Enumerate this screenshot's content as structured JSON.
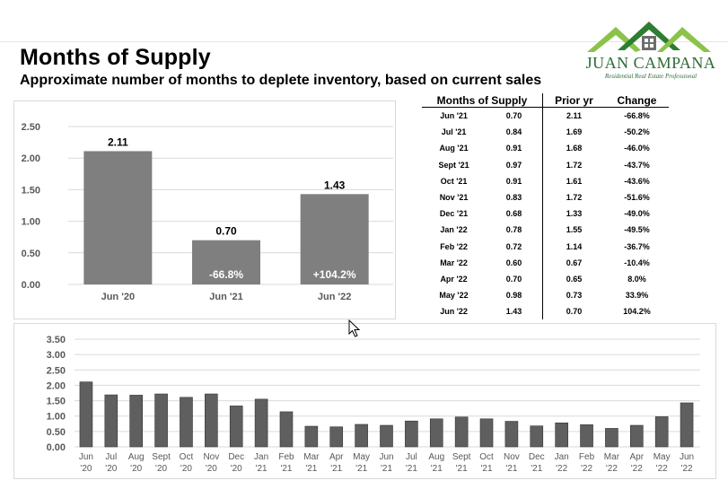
{
  "header": {
    "title": "Months of Supply",
    "subtitle": "Approximate number of months to deplete inventory, based on current sales"
  },
  "logo": {
    "name": "JUAN CAMPANA",
    "tagline": "Residential Real Estate Professional",
    "colors": {
      "green_dark": "#2e7d32",
      "green_light": "#8bc34a",
      "house": "#6d6d6d"
    }
  },
  "colors": {
    "bar": "#7f7f7f",
    "bar_dark": "#5f5f5f",
    "grid": "#d9d9d9",
    "axis_text": "#595959"
  },
  "table": {
    "headers": [
      "Months of Supply",
      "Prior yr",
      "Change"
    ],
    "rows": [
      [
        "Jun '21",
        "0.70",
        "2.11",
        "-66.8%"
      ],
      [
        "Jul '21",
        "0.84",
        "1.69",
        "-50.2%"
      ],
      [
        "Aug '21",
        "0.91",
        "1.68",
        "-46.0%"
      ],
      [
        "Sept '21",
        "0.97",
        "1.72",
        "-43.7%"
      ],
      [
        "Oct '21",
        "0.91",
        "1.61",
        "-43.6%"
      ],
      [
        "Nov '21",
        "0.83",
        "1.72",
        "-51.6%"
      ],
      [
        "Dec '21",
        "0.68",
        "1.33",
        "-49.0%"
      ],
      [
        "Jan '22",
        "0.78",
        "1.55",
        "-49.5%"
      ],
      [
        "Feb '22",
        "0.72",
        "1.14",
        "-36.7%"
      ],
      [
        "Mar '22",
        "0.60",
        "0.67",
        "-10.4%"
      ],
      [
        "Apr '22",
        "0.70",
        "0.65",
        "8.0%"
      ],
      [
        "May '22",
        "0.98",
        "0.73",
        "33.9%"
      ],
      [
        "Jun '22",
        "1.43",
        "0.70",
        "104.2%"
      ]
    ]
  },
  "chart_data": [
    {
      "type": "bar",
      "categories": [
        "Jun '20",
        "Jun '21",
        "Jun '22"
      ],
      "values": [
        2.11,
        0.7,
        1.43
      ],
      "data_labels": [
        "2.11",
        "0.70",
        "1.43"
      ],
      "change_labels": [
        "",
        "-66.8%",
        "+104.2%"
      ],
      "yticks": [
        "0.00",
        "0.50",
        "1.00",
        "1.50",
        "2.00",
        "2.50"
      ],
      "ylim": [
        0,
        2.5
      ],
      "grid": true
    },
    {
      "type": "bar",
      "categories": [
        [
          "Jun",
          "'20"
        ],
        [
          "Jul",
          "'20"
        ],
        [
          "Aug",
          "'20"
        ],
        [
          "Sept",
          "'20"
        ],
        [
          "Oct",
          "'20"
        ],
        [
          "Nov",
          "'20"
        ],
        [
          "Dec",
          "'20"
        ],
        [
          "Jan",
          "'21"
        ],
        [
          "Feb",
          "'21"
        ],
        [
          "Mar",
          "'21"
        ],
        [
          "Apr",
          "'21"
        ],
        [
          "May",
          "'21"
        ],
        [
          "Jun",
          "'21"
        ],
        [
          "Jul",
          "'21"
        ],
        [
          "Aug",
          "'21"
        ],
        [
          "Sept",
          "'21"
        ],
        [
          "Oct",
          "'21"
        ],
        [
          "Nov",
          "'21"
        ],
        [
          "Dec",
          "'21"
        ],
        [
          "Jan",
          "'22"
        ],
        [
          "Feb",
          "'22"
        ],
        [
          "Mar",
          "'22"
        ],
        [
          "Apr",
          "'22"
        ],
        [
          "May",
          "'22"
        ],
        [
          "Jun",
          "'22"
        ]
      ],
      "values": [
        2.11,
        1.69,
        1.68,
        1.72,
        1.61,
        1.72,
        1.33,
        1.55,
        1.14,
        0.67,
        0.65,
        0.73,
        0.7,
        0.84,
        0.91,
        0.97,
        0.91,
        0.83,
        0.68,
        0.78,
        0.72,
        0.6,
        0.7,
        0.98,
        1.43
      ],
      "yticks": [
        "0.00",
        "0.50",
        "1.00",
        "1.50",
        "2.00",
        "2.50",
        "3.00",
        "3.50"
      ],
      "ylim": [
        0,
        3.5
      ],
      "grid": true
    }
  ]
}
